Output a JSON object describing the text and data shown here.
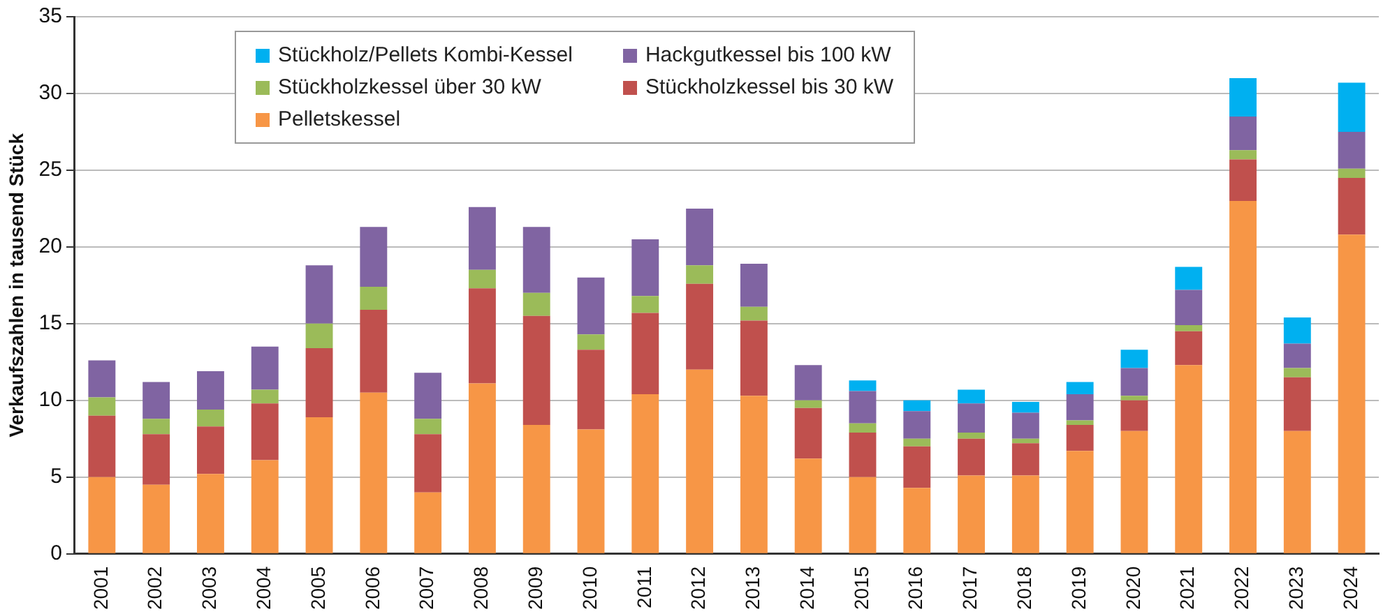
{
  "chart_data": {
    "type": "bar",
    "stacked": true,
    "ylabel": "Verkaufszahlen in tausend Stück",
    "categories": [
      "2001",
      "2002",
      "2003",
      "2004",
      "2005",
      "2006",
      "2007",
      "2008",
      "2009",
      "2010",
      "2011",
      "2012",
      "2013",
      "2014",
      "2015",
      "2016",
      "2017",
      "2018",
      "2019",
      "2020",
      "2021",
      "2022",
      "2023",
      "2024"
    ],
    "series": [
      {
        "name": "Pelletskessel",
        "color": "#f79646",
        "values": [
          5.0,
          4.5,
          5.2,
          6.1,
          8.9,
          10.5,
          4.0,
          11.1,
          8.4,
          8.1,
          10.4,
          12.0,
          10.3,
          6.2,
          5.0,
          4.3,
          5.1,
          5.1,
          6.7,
          8.0,
          12.3,
          23.0,
          8.0,
          20.8
        ]
      },
      {
        "name": "Stückholzkessel bis 30 kW",
        "color": "#c0504d",
        "values": [
          4.0,
          3.3,
          3.1,
          3.7,
          4.5,
          5.4,
          3.8,
          6.2,
          7.1,
          5.2,
          5.3,
          5.6,
          4.9,
          3.3,
          2.9,
          2.7,
          2.4,
          2.1,
          1.7,
          2.0,
          2.2,
          2.7,
          3.5,
          3.7
        ]
      },
      {
        "name": "Stückholzkessel über 30 kW",
        "color": "#9bbb59",
        "values": [
          1.2,
          1.0,
          1.1,
          0.9,
          1.6,
          1.5,
          1.0,
          1.2,
          1.5,
          1.0,
          1.1,
          1.2,
          0.9,
          0.5,
          0.6,
          0.5,
          0.4,
          0.3,
          0.3,
          0.3,
          0.4,
          0.6,
          0.6,
          0.6
        ]
      },
      {
        "name": "Hackgutkessel bis 100 kW",
        "color": "#8064a2",
        "values": [
          2.4,
          2.4,
          2.5,
          2.8,
          3.8,
          3.9,
          3.0,
          4.1,
          4.3,
          3.7,
          3.7,
          3.7,
          2.8,
          2.3,
          2.1,
          1.8,
          1.9,
          1.7,
          1.7,
          1.8,
          2.3,
          2.2,
          1.6,
          2.4
        ]
      },
      {
        "name": "Stückholz/Pellets Kombi-Kessel",
        "color": "#00b0f0",
        "values": [
          null,
          null,
          null,
          null,
          null,
          null,
          null,
          null,
          null,
          null,
          null,
          null,
          null,
          null,
          0.7,
          0.7,
          0.9,
          0.7,
          0.8,
          1.2,
          1.5,
          2.5,
          1.7,
          3.2
        ]
      }
    ],
    "ylim": [
      0,
      35
    ],
    "yticks": [
      0,
      5,
      10,
      15,
      20,
      25,
      30,
      35
    ],
    "grid": "y",
    "legend": "top left"
  }
}
